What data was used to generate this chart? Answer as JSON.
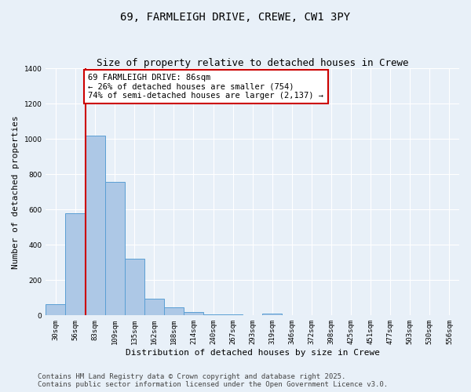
{
  "title": "69, FARMLEIGH DRIVE, CREWE, CW1 3PY",
  "subtitle": "Size of property relative to detached houses in Crewe",
  "xlabel": "Distribution of detached houses by size in Crewe",
  "ylabel": "Number of detached properties",
  "bin_labels": [
    "30sqm",
    "56sqm",
    "83sqm",
    "109sqm",
    "135sqm",
    "162sqm",
    "188sqm",
    "214sqm",
    "240sqm",
    "267sqm",
    "293sqm",
    "319sqm",
    "346sqm",
    "372sqm",
    "398sqm",
    "425sqm",
    "451sqm",
    "477sqm",
    "503sqm",
    "530sqm",
    "556sqm"
  ],
  "bar_values": [
    65,
    580,
    1020,
    755,
    320,
    95,
    45,
    20,
    8,
    5,
    0,
    12,
    0,
    0,
    0,
    0,
    0,
    0,
    0,
    0,
    0
  ],
  "bar_color": "#adc8e6",
  "bar_edge_color": "#5a9fd4",
  "property_line_x": 2.0,
  "property_line_color": "#cc0000",
  "annotation_text": "69 FARMLEIGH DRIVE: 86sqm\n← 26% of detached houses are smaller (754)\n74% of semi-detached houses are larger (2,137) →",
  "annotation_box_color": "white",
  "annotation_box_edge_color": "#cc0000",
  "ylim": [
    0,
    1400
  ],
  "yticks": [
    0,
    200,
    400,
    600,
    800,
    1000,
    1200,
    1400
  ],
  "background_color": "#e8f0f8",
  "footer": "Contains HM Land Registry data © Crown copyright and database right 2025.\nContains public sector information licensed under the Open Government Licence v3.0.",
  "title_fontsize": 10,
  "subtitle_fontsize": 9,
  "axis_label_fontsize": 8,
  "tick_fontsize": 6.5,
  "annotation_fontsize": 7.5,
  "footer_fontsize": 6.5
}
